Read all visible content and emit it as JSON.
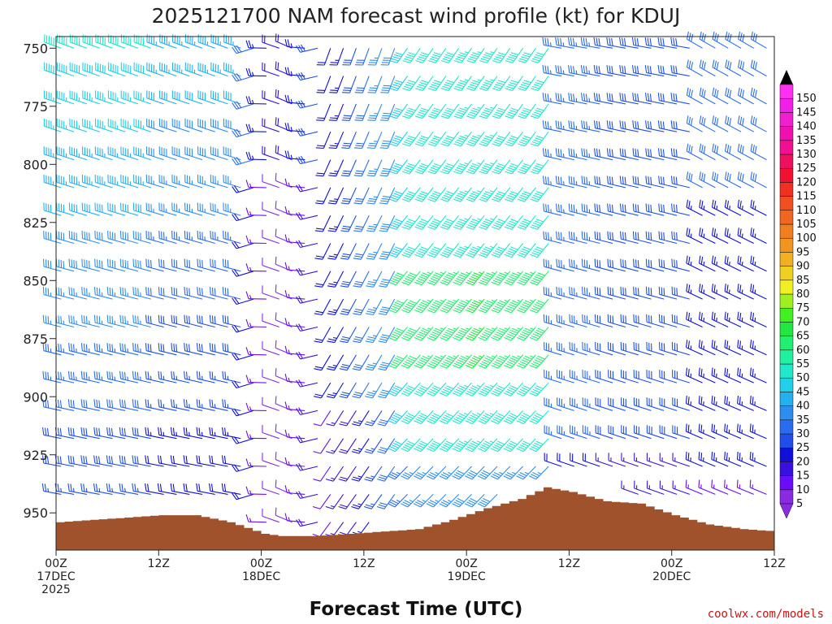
{
  "chart_data": {
    "type": "wind-barb-time-height",
    "title": "2025121700 NAM forecast wind profile (kt) for KDUJ",
    "xlabel": "Forecast Time (UTC)",
    "credit": "coolwx.com/models",
    "x_ticks": [
      {
        "hour": 0,
        "lines": [
          "00Z",
          "17DEC",
          "2025"
        ]
      },
      {
        "hour": 12,
        "lines": [
          "12Z"
        ]
      },
      {
        "hour": 24,
        "lines": [
          "00Z",
          "18DEC"
        ]
      },
      {
        "hour": 36,
        "lines": [
          "12Z"
        ]
      },
      {
        "hour": 48,
        "lines": [
          "00Z",
          "19DEC"
        ]
      },
      {
        "hour": 60,
        "lines": [
          "12Z"
        ]
      },
      {
        "hour": 72,
        "lines": [
          "00Z",
          "20DEC"
        ]
      },
      {
        "hour": 84,
        "lines": [
          "12Z"
        ]
      }
    ],
    "xlim": [
      0,
      84
    ],
    "y_ticks": [
      750,
      775,
      800,
      825,
      850,
      875,
      900,
      925,
      950
    ],
    "ylim": [
      745,
      966
    ],
    "colorbar": {
      "labels": [
        5,
        10,
        15,
        20,
        25,
        30,
        35,
        40,
        45,
        50,
        55,
        60,
        65,
        70,
        75,
        80,
        85,
        90,
        95,
        100,
        105,
        110,
        115,
        120,
        125,
        130,
        135,
        140,
        145,
        150
      ],
      "colors": [
        "#8a2be2",
        "#6a0dfa",
        "#3a10e0",
        "#1010d8",
        "#1f4fe8",
        "#2a6cf0",
        "#2e8ef0",
        "#25b0f0",
        "#20d0e8",
        "#20e8c8",
        "#20f0a0",
        "#20f070",
        "#20e840",
        "#40f020",
        "#a0f020",
        "#f0f020",
        "#f0d020",
        "#f0b020",
        "#f09520",
        "#f07f20",
        "#f06820",
        "#f05020",
        "#f03020",
        "#f01030",
        "#f01060",
        "#f01090",
        "#f010b0",
        "#f020d0",
        "#f020e8",
        "#ff30f0"
      ]
    },
    "surface_pressure": [
      {
        "hour": 0,
        "p": 954
      },
      {
        "hour": 4,
        "p": 953
      },
      {
        "hour": 8,
        "p": 952
      },
      {
        "hour": 12,
        "p": 951
      },
      {
        "hour": 16,
        "p": 951
      },
      {
        "hour": 20,
        "p": 954
      },
      {
        "hour": 24,
        "p": 959
      },
      {
        "hour": 26,
        "p": 960
      },
      {
        "hour": 30,
        "p": 960
      },
      {
        "hour": 34,
        "p": 959
      },
      {
        "hour": 38,
        "p": 958
      },
      {
        "hour": 42,
        "p": 957
      },
      {
        "hour": 46,
        "p": 953
      },
      {
        "hour": 50,
        "p": 948
      },
      {
        "hour": 54,
        "p": 944
      },
      {
        "hour": 57,
        "p": 939
      },
      {
        "hour": 60,
        "p": 941
      },
      {
        "hour": 64,
        "p": 945
      },
      {
        "hour": 68,
        "p": 946
      },
      {
        "hour": 72,
        "p": 951
      },
      {
        "hour": 76,
        "p": 955
      },
      {
        "hour": 80,
        "p": 957
      },
      {
        "hour": 84,
        "p": 958
      }
    ],
    "wind_field_note": ""
  }
}
